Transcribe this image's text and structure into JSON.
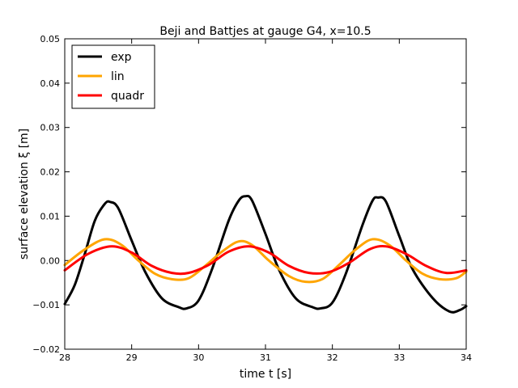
{
  "chart_data": {
    "type": "line",
    "title": "Beji and Battjes at gauge G4, x=10.5",
    "xlabel": "time  t [s]",
    "ylabel": "surface elevation ξ [m]",
    "xlim": [
      28,
      34
    ],
    "ylim": [
      -0.02,
      0.05
    ],
    "x_ticks": [
      28,
      29,
      30,
      31,
      32,
      33,
      34
    ],
    "y_ticks": [
      -0.02,
      -0.01,
      0.0,
      0.01,
      0.02,
      0.03,
      0.04,
      0.05
    ],
    "x_tick_labels": [
      "28",
      "29",
      "30",
      "31",
      "32",
      "33",
      "34"
    ],
    "y_tick_labels": [
      "−0.02",
      "−0.01",
      "0.00",
      "0.01",
      "0.02",
      "0.03",
      "0.04",
      "0.05"
    ],
    "grid": false,
    "legend_position": "top-left",
    "series": [
      {
        "name": "exp",
        "color": "#000000",
        "x": [
          28.0,
          28.15,
          28.3,
          28.45,
          28.6,
          28.68,
          28.8,
          29.0,
          29.2,
          29.45,
          29.7,
          29.82,
          30.0,
          30.2,
          30.45,
          30.6,
          30.7,
          30.8,
          31.0,
          31.2,
          31.45,
          31.7,
          31.82,
          32.0,
          32.2,
          32.45,
          32.6,
          32.68,
          32.8,
          33.0,
          33.2,
          33.5,
          33.75,
          33.9,
          34.0
        ],
        "y": [
          -0.0098,
          -0.0055,
          0.0015,
          0.009,
          0.0128,
          0.0132,
          0.0118,
          0.0045,
          -0.0025,
          -0.0085,
          -0.0105,
          -0.0108,
          -0.009,
          -0.002,
          0.009,
          0.0135,
          0.0145,
          0.0135,
          0.006,
          -0.002,
          -0.0085,
          -0.0105,
          -0.0108,
          -0.0095,
          -0.003,
          0.008,
          0.0135,
          0.0142,
          0.0133,
          0.0055,
          -0.002,
          -0.0085,
          -0.0115,
          -0.0112,
          -0.0103
        ]
      },
      {
        "name": "lin",
        "color": "#ffa500",
        "x": [
          28.0,
          28.3,
          28.6,
          28.85,
          29.1,
          29.35,
          29.6,
          29.85,
          30.1,
          30.35,
          30.6,
          30.8,
          31.05,
          31.35,
          31.6,
          31.85,
          32.1,
          32.35,
          32.6,
          32.85,
          33.1,
          33.35,
          33.6,
          33.85,
          34.0
        ],
        "y": [
          -0.001,
          0.0025,
          0.0048,
          0.0035,
          0.0,
          -0.003,
          -0.0042,
          -0.004,
          -0.0012,
          0.002,
          0.0043,
          0.0035,
          0.0,
          -0.0035,
          -0.0048,
          -0.0042,
          -0.001,
          0.0025,
          0.0048,
          0.0035,
          0.0,
          -0.003,
          -0.0042,
          -0.004,
          -0.0025
        ]
      },
      {
        "name": "quadr",
        "color": "#ff0000",
        "x": [
          28.0,
          28.35,
          28.7,
          29.0,
          29.3,
          29.6,
          29.85,
          30.15,
          30.45,
          30.75,
          31.05,
          31.35,
          31.65,
          31.95,
          32.25,
          32.55,
          32.8,
          33.1,
          33.4,
          33.7,
          34.0
        ],
        "y": [
          -0.0022,
          0.0015,
          0.0032,
          0.0018,
          -0.0012,
          -0.0028,
          -0.0028,
          -0.001,
          0.002,
          0.0032,
          0.0018,
          -0.0012,
          -0.0028,
          -0.0026,
          -0.0005,
          0.0025,
          0.0032,
          0.0015,
          -0.0012,
          -0.0028,
          -0.0022
        ]
      }
    ]
  }
}
